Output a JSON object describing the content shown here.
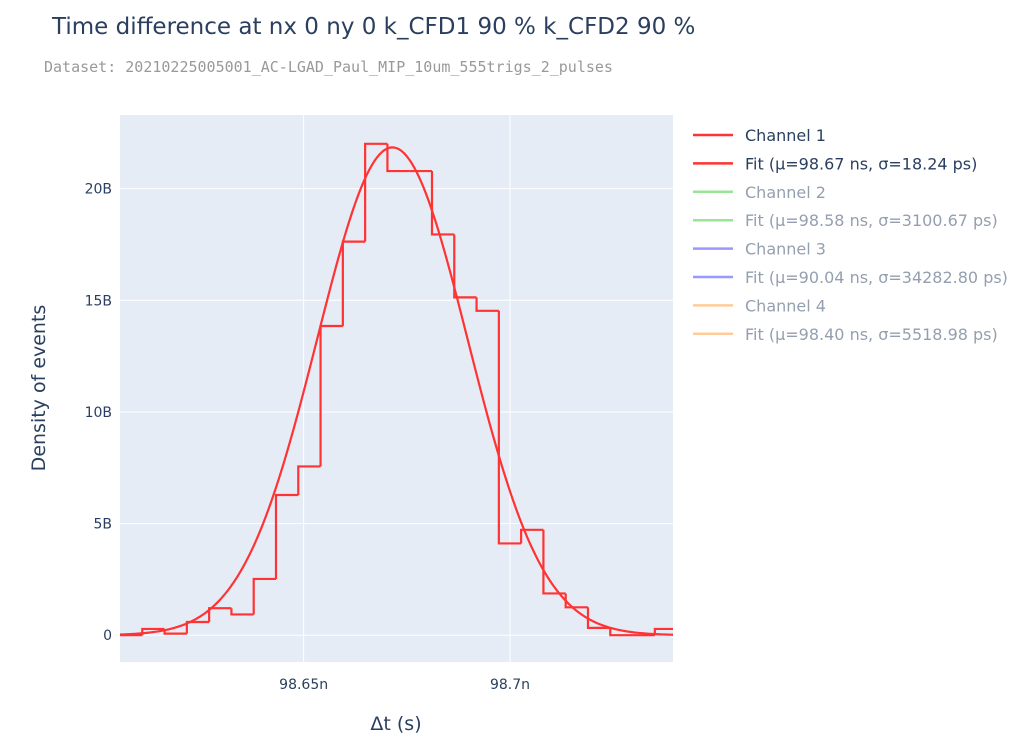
{
  "chart_data": {
    "type": "histogram",
    "title": "Time difference at nx 0 ny 0 k_CFD1 90 % k_CFD2 90 %",
    "subtitle": "Dataset: 20210225005001_AC-LGAD_Paul_MIP_10um_555trigs_2_pulses",
    "xlabel": "Δt (s)",
    "ylabel": "Density of events",
    "xlim": [
      98.6055,
      98.7395
    ],
    "ylim": [
      -1.2,
      23.3
    ],
    "y_unit_label": "B",
    "x_ticks": [
      {
        "value": 98.65,
        "label": "98.65n"
      },
      {
        "value": 98.7,
        "label": "98.7n"
      }
    ],
    "y_ticks": [
      {
        "value": 0,
        "label": "0"
      },
      {
        "value": 5,
        "label": "5B"
      },
      {
        "value": 10,
        "label": "10B"
      },
      {
        "value": 15,
        "label": "15B"
      },
      {
        "value": 20,
        "label": "20B"
      }
    ],
    "grid": true,
    "legend_position": "right",
    "histogram": {
      "series": "Channel 1",
      "color": "#ff3333",
      "edges": [
        98.6055,
        98.6109,
        98.6163,
        98.6217,
        98.6271,
        98.6325,
        98.6379,
        98.6433,
        98.6487,
        98.6541,
        98.6595,
        98.6649,
        98.6703,
        98.6757,
        98.6811,
        98.6865,
        98.6919,
        98.6973,
        98.7027,
        98.7081,
        98.7135,
        98.7189,
        98.7243,
        98.7297,
        98.7351,
        98.7395
      ],
      "density": [
        0,
        0.28,
        0.07,
        0.59,
        1.21,
        0.93,
        2.52,
        6.28,
        7.56,
        13.85,
        17.63,
        22.01,
        20.79,
        20.79,
        17.95,
        15.13,
        14.53,
        4.11,
        4.72,
        1.87,
        1.25,
        0.33,
        0,
        0,
        0.28
      ]
    },
    "fit": {
      "series": "Fit (μ=98.67 ns, σ=18.24 ps)",
      "color": "#ff3333",
      "mu": 98.6715,
      "sigma": 0.01824,
      "amplitude": 21.85
    },
    "legend": [
      {
        "label": "Channel 1",
        "color": "#ff3333",
        "active": true
      },
      {
        "label": "Fit (μ=98.67 ns, σ=18.24 ps)",
        "color": "#ff3333",
        "active": true
      },
      {
        "label": "Channel 2",
        "color": "#33cc33",
        "active": false
      },
      {
        "label": "Fit (μ=98.58 ns, σ=3100.67 ps)",
        "color": "#33cc33",
        "active": false
      },
      {
        "label": "Channel 3",
        "color": "#3333ff",
        "active": false
      },
      {
        "label": "Fit (μ=90.04 ns, σ=34282.80 ps)",
        "color": "#3333ff",
        "active": false
      },
      {
        "label": "Channel 4",
        "color": "#ff9933",
        "active": false
      },
      {
        "label": "Fit (μ=98.40 ns, σ=5518.98 ps)",
        "color": "#ff9933",
        "active": false
      }
    ]
  }
}
